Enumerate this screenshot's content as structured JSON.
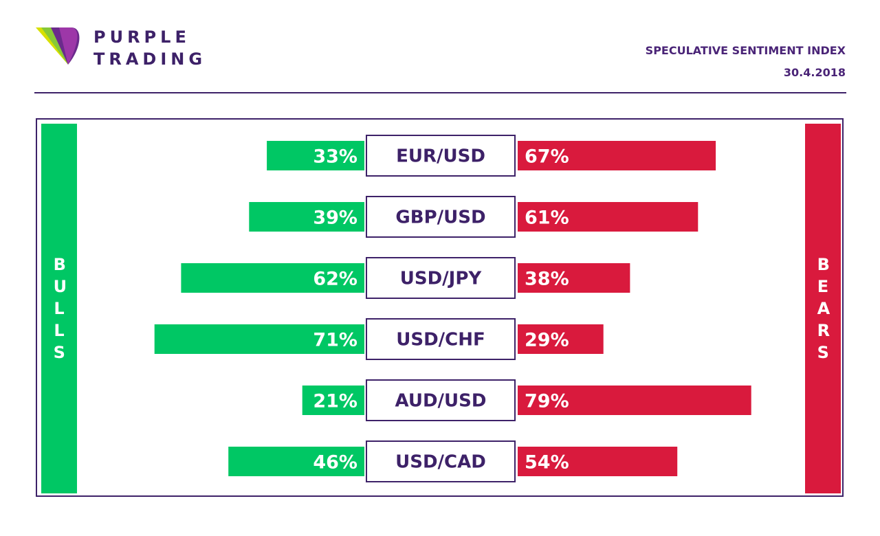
{
  "brand": {
    "line1": "PURPLE",
    "line2": "TRADING"
  },
  "header": {
    "title": "SPECULATIVE SENTIMENT INDEX",
    "date": "30.4.2018"
  },
  "sides": {
    "left": "BULLS",
    "right": "BEARS"
  },
  "colors": {
    "bulls": "#00c764",
    "bears": "#d91a3d",
    "brand": "#3d2168",
    "brand_light": "#9d37a8",
    "logo_yellow": "#d7e000"
  },
  "chart_data": {
    "type": "bar",
    "categories": [
      "EUR/USD",
      "GBP/USD",
      "USD/JPY",
      "USD/CHF",
      "AUD/USD",
      "USD/CAD"
    ],
    "series": [
      {
        "name": "BULLS",
        "values": [
          33,
          39,
          62,
          71,
          21,
          46
        ]
      },
      {
        "name": "BEARS",
        "values": [
          67,
          61,
          38,
          29,
          79,
          54
        ]
      }
    ],
    "value_suffix": "%",
    "xlim": [
      0,
      100
    ]
  }
}
